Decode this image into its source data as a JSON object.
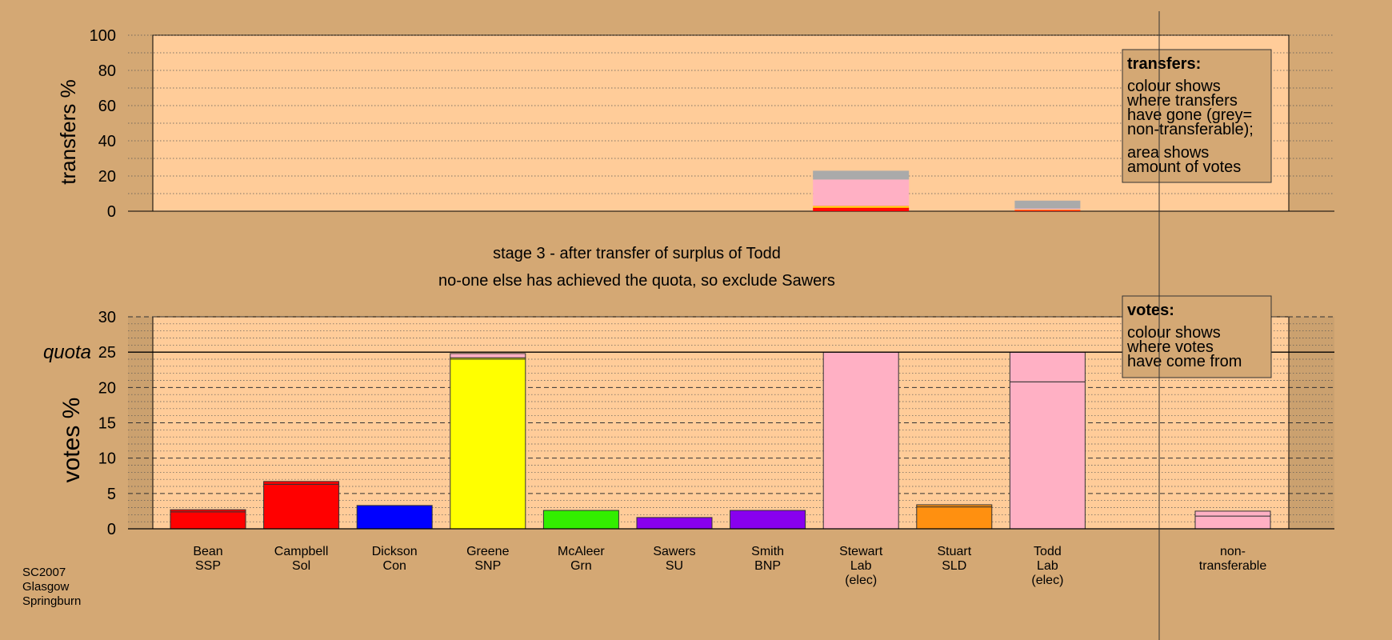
{
  "colors": {
    "background": "#D4A874",
    "plot_bg": "#FFCC99",
    "SSP": "#FF0000",
    "Sol": "#FF0000",
    "Con": "#0000FF",
    "SNP": "#FFFF00",
    "Grn": "#33EE00",
    "SU": "#8800EE",
    "BNP": "#8800EE",
    "Lab": "#FFB0C4",
    "SLD": "#FF9010",
    "nontransferable": "#AAAAAA"
  },
  "chart_data": [
    {
      "type": "bar",
      "stacked": true,
      "panel": "transfers",
      "ylabel": "transfers %",
      "ylim": [
        0,
        100
      ],
      "yticks": [
        0,
        20,
        40,
        60,
        80,
        100
      ],
      "categories": [
        "Stewart Lab (elec)",
        "Todd Lab (elec)"
      ],
      "series": [
        {
          "party": "SSP",
          "values": [
            1.2,
            0.4
          ]
        },
        {
          "party": "Sol",
          "values": [
            0.8,
            0.2
          ]
        },
        {
          "party": "SNP",
          "values": [
            0.6,
            0.2
          ]
        },
        {
          "party": "SLD",
          "values": [
            0.4,
            0.1
          ]
        },
        {
          "party": "Lab",
          "values": [
            15.0,
            0.6
          ]
        },
        {
          "party": "nontransferable",
          "values": [
            5.0,
            4.5
          ]
        }
      ],
      "legend": {
        "title": "transfers:",
        "lines_1": [
          "colour shows",
          "where transfers",
          "have gone (grey=",
          "non-transferable);"
        ],
        "lines_2": [
          "area shows",
          "amount of votes"
        ]
      }
    },
    {
      "type": "bar",
      "stacked": true,
      "panel": "votes",
      "ylabel": "votes %",
      "ylim": [
        0,
        30
      ],
      "yticks": [
        0,
        5,
        10,
        15,
        20,
        25,
        30
      ],
      "quota": 25,
      "quota_label": "quota",
      "title_lines": [
        "stage 3 - after transfer of surplus of Todd",
        "no-one else has achieved the quota, so exclude Sawers"
      ],
      "candidates": [
        {
          "name": "Bean",
          "party": "SSP",
          "segments": [
            {
              "party": "SSP",
              "value": 2.4
            },
            {
              "party": "SSP",
              "value": 0.3
            }
          ]
        },
        {
          "name": "Campbell",
          "party": "Sol",
          "segments": [
            {
              "party": "Sol",
              "value": 6.3
            },
            {
              "party": "Sol",
              "value": 0.4
            }
          ]
        },
        {
          "name": "Dickson",
          "party": "Con",
          "segments": [
            {
              "party": "Con",
              "value": 3.3
            }
          ]
        },
        {
          "name": "Greene",
          "party": "SNP",
          "segments": [
            {
              "party": "SNP",
              "value": 24.0
            },
            {
              "party": "SNP",
              "value": 0.2
            },
            {
              "party": "Lab",
              "value": 0.6
            }
          ]
        },
        {
          "name": "McAleer",
          "party": "Grn",
          "segments": [
            {
              "party": "Grn",
              "value": 2.6
            }
          ]
        },
        {
          "name": "Sawers",
          "party": "SU",
          "segments": [
            {
              "party": "SU",
              "value": 1.6
            }
          ]
        },
        {
          "name": "Smith",
          "party": "BNP",
          "segments": [
            {
              "party": "BNP",
              "value": 2.6
            }
          ]
        },
        {
          "name": "Stewart",
          "party": "Lab",
          "extra": "(elec)",
          "segments": [
            {
              "party": "Lab",
              "value": 25.0
            }
          ]
        },
        {
          "name": "Stuart",
          "party": "SLD",
          "segments": [
            {
              "party": "SLD",
              "value": 3.1
            },
            {
              "party": "SLD",
              "value": 0.3
            }
          ]
        },
        {
          "name": "Todd",
          "party": "Lab",
          "extra": "(elec)",
          "segments": [
            {
              "party": "Lab",
              "value": 20.8
            },
            {
              "party": "Lab",
              "value": 4.2
            }
          ]
        }
      ],
      "nontransferable": {
        "label_lines": [
          "non-",
          "transferable"
        ],
        "segments": [
          {
            "party": "Lab",
            "value": 1.8
          },
          {
            "party": "Lab",
            "value": 0.7
          }
        ]
      },
      "legend": {
        "title": "votes:",
        "lines": [
          "colour shows",
          "where votes",
          "have come from"
        ]
      }
    }
  ],
  "footer": {
    "lines": [
      "SC2007",
      "Glasgow",
      "Springburn"
    ]
  }
}
